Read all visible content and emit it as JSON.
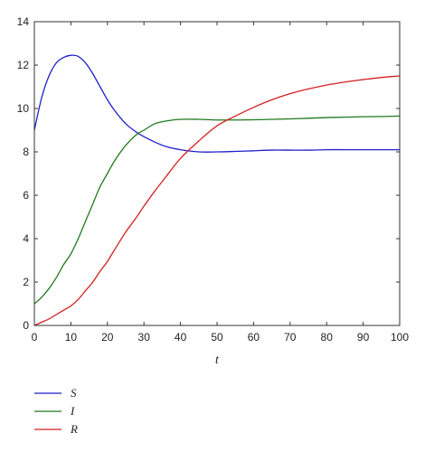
{
  "chart_data": {
    "type": "line",
    "xlabel": "t",
    "ylabel": "",
    "xlim": [
      0,
      100
    ],
    "ylim": [
      0,
      14
    ],
    "xticks": [
      0,
      10,
      20,
      30,
      40,
      50,
      60,
      70,
      80,
      90,
      100
    ],
    "yticks": [
      0,
      2,
      4,
      6,
      8,
      10,
      12,
      14
    ],
    "grid": false,
    "legend_position": "bottom-left",
    "x": [
      0,
      2,
      4,
      6,
      8,
      10,
      12,
      14,
      16,
      18,
      20,
      22,
      25,
      28,
      30,
      33,
      36,
      40,
      45,
      50,
      55,
      60,
      65,
      70,
      75,
      80,
      85,
      90,
      95,
      100
    ],
    "series": [
      {
        "name": "S",
        "color": "#1f1fcc",
        "values": [
          9.0,
          10.5,
          11.5,
          12.1,
          12.35,
          12.45,
          12.4,
          12.1,
          11.6,
          11.0,
          10.4,
          9.9,
          9.3,
          8.9,
          8.7,
          8.45,
          8.25,
          8.1,
          8.0,
          8.0,
          8.02,
          8.05,
          8.08,
          8.08,
          8.08,
          8.1,
          8.1,
          8.1,
          8.1,
          8.1
        ]
      },
      {
        "name": "I",
        "color": "#1f7a1f",
        "values": [
          1.0,
          1.3,
          1.7,
          2.2,
          2.8,
          3.3,
          4.0,
          4.8,
          5.6,
          6.4,
          7.0,
          7.6,
          8.3,
          8.8,
          9.0,
          9.3,
          9.42,
          9.5,
          9.5,
          9.47,
          9.47,
          9.48,
          9.5,
          9.52,
          9.55,
          9.58,
          9.6,
          9.62,
          9.63,
          9.65
        ]
      },
      {
        "name": "R",
        "color": "#d42020",
        "values": [
          0.0,
          0.15,
          0.3,
          0.5,
          0.7,
          0.9,
          1.2,
          1.6,
          2.0,
          2.5,
          2.95,
          3.5,
          4.3,
          5.0,
          5.5,
          6.2,
          6.85,
          7.7,
          8.5,
          9.2,
          9.65,
          10.05,
          10.4,
          10.68,
          10.9,
          11.08,
          11.22,
          11.33,
          11.43,
          11.5
        ]
      }
    ]
  }
}
